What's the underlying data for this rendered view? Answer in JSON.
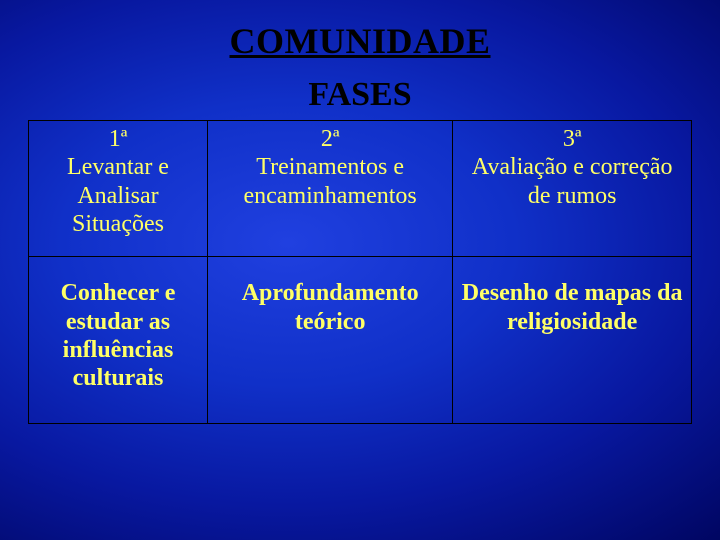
{
  "title": "COMUNIDADE",
  "subtitle": "FASES",
  "table": {
    "rows": [
      [
        "1ª\nLevantar e Analisar Situações",
        "2ª\nTreinamentos e encaminhamentos",
        "3ª\nAvaliação e correção de rumos"
      ],
      [
        "Conhecer e estudar as influências culturais",
        "Aprofundamento teórico",
        "Desenho de mapas da religiosidade"
      ]
    ]
  },
  "colors": {
    "title": "#000000",
    "cell_text": "#ffff66",
    "border": "#000000",
    "bg_center": "#2040e0",
    "bg_edge": "#000560"
  },
  "fonts": {
    "title_size_pt": 36,
    "subtitle_size_pt": 34,
    "cell_size_pt": 24,
    "family": "Times New Roman"
  }
}
